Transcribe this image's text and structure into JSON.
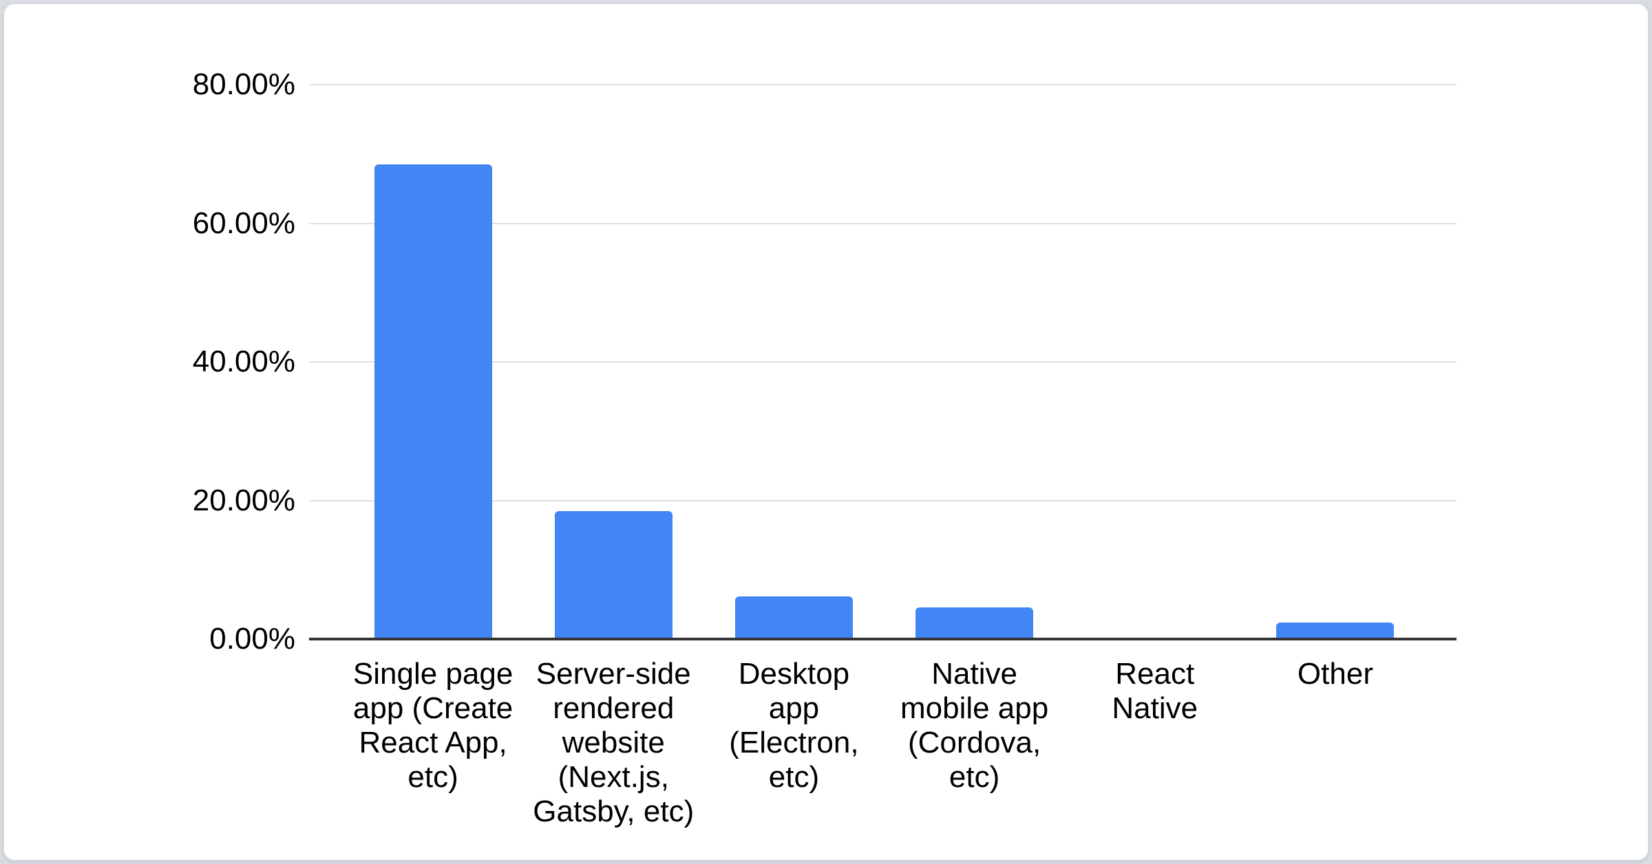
{
  "page": {
    "background_color": "#d9dce0",
    "card_background": "#ffffff",
    "card_border_color": "#d9dce0"
  },
  "chart_data": {
    "type": "bar",
    "title": "",
    "xlabel": "",
    "ylabel": "",
    "categories": [
      "Single page app (Create React App, etc)",
      "Server-side rendered website (Next.js, Gatsby, etc)",
      "Desktop app (Electron, etc)",
      "Native mobile app (Cordova, etc)",
      "React Native",
      "Other"
    ],
    "category_label_lines": [
      "Single page\napp (Create\nReact App,\netc)",
      "Server-side\nrendered\nwebsite\n(Next.js,\nGatsby, etc)",
      "Desktop\napp\n(Electron,\netc)",
      "Native\nmobile app\n(Cordova,\netc)",
      "React\nNative",
      "Other"
    ],
    "values": [
      68.5,
      18.5,
      6.2,
      4.6,
      0,
      2.4
    ],
    "value_unit": "%",
    "ylim": [
      0,
      80
    ],
    "y_tick_labels": [
      "80.00%",
      "60.00%",
      "40.00%",
      "20.00%",
      "0.00%"
    ],
    "y_tick_values": [
      80,
      60,
      40,
      20,
      0
    ],
    "grid": true,
    "legend": false,
    "bar_color": "#4285f4",
    "gridline_color": "#e0e0e0",
    "axis_line_color": "#333333",
    "text_color": "#000000"
  }
}
